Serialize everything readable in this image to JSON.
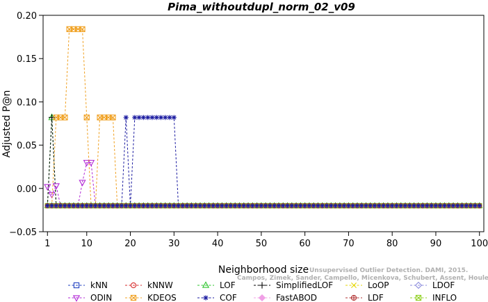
{
  "chart_data": {
    "type": "line",
    "title": "Pima_withoutdupl_norm_02_v09",
    "xlabel": "Neighborhood size",
    "ylabel": "Adjusted P@n",
    "xlim": [
      0,
      101
    ],
    "ylim": [
      -0.05,
      0.2
    ],
    "x_ticks": [
      1,
      10,
      20,
      30,
      40,
      50,
      60,
      70,
      80,
      90,
      100
    ],
    "y_ticks": [
      -0.05,
      0.0,
      0.05,
      0.1,
      0.15,
      0.2
    ],
    "y_tick_labels": [
      "−0.05",
      "0.00",
      "0.05",
      "0.10",
      "0.15",
      "0.20"
    ],
    "baseline": -0.02,
    "grid": false,
    "legend_position": "bottom",
    "series": [
      {
        "name": "kNN",
        "color": "#1f3fbf",
        "marker": "square",
        "points": []
      },
      {
        "name": "kNNW",
        "color": "#d62828",
        "marker": "circle",
        "points": []
      },
      {
        "name": "LOF",
        "color": "#2ec42e",
        "marker": "triangle-up",
        "points": [
          [
            1,
            -0.02
          ],
          [
            2,
            0.082
          ],
          [
            3,
            -0.02
          ]
        ]
      },
      {
        "name": "SimplifiedLOF",
        "color": "#000000",
        "marker": "plus",
        "points": [
          [
            1,
            -0.02
          ],
          [
            2,
            0.082
          ],
          [
            3,
            -0.02
          ]
        ]
      },
      {
        "name": "LoOP",
        "color": "#e6d600",
        "marker": "x",
        "points": []
      },
      {
        "name": "LDOF",
        "color": "#8a8adc",
        "marker": "diamond",
        "points": []
      },
      {
        "name": "ODIN",
        "color": "#b228d6",
        "marker": "triangle-down",
        "points": [
          [
            1,
            0.002
          ],
          [
            2,
            -0.007
          ],
          [
            3,
            0.003
          ],
          [
            4,
            -0.02
          ],
          [
            8,
            -0.02
          ],
          [
            9,
            0.007
          ],
          [
            10,
            0.03
          ],
          [
            11,
            0.03
          ],
          [
            12,
            -0.02
          ]
        ]
      },
      {
        "name": "KDEOS",
        "color": "#f0a020",
        "marker": "boxed-x",
        "points": [
          [
            2,
            -0.02
          ],
          [
            3,
            0.082
          ],
          [
            4,
            0.082
          ],
          [
            5,
            0.082
          ],
          [
            6,
            0.184
          ],
          [
            7,
            0.184
          ],
          [
            8,
            0.184
          ],
          [
            9,
            0.184
          ],
          [
            10,
            0.082
          ],
          [
            11,
            -0.02
          ],
          [
            12,
            -0.02
          ],
          [
            13,
            0.082
          ],
          [
            14,
            0.082
          ],
          [
            15,
            0.082
          ],
          [
            16,
            0.082
          ],
          [
            17,
            -0.02
          ]
        ]
      },
      {
        "name": "COF",
        "color": "#1a1aa0",
        "marker": "asterisk",
        "points": [
          [
            18,
            -0.02
          ],
          [
            19,
            0.082
          ],
          [
            20,
            -0.02
          ],
          [
            21,
            0.082
          ],
          [
            22,
            0.082
          ],
          [
            23,
            0.082
          ],
          [
            24,
            0.082
          ],
          [
            25,
            0.082
          ],
          [
            26,
            0.082
          ],
          [
            27,
            0.082
          ],
          [
            28,
            0.082
          ],
          [
            29,
            0.082
          ],
          [
            30,
            0.082
          ],
          [
            31,
            -0.02
          ]
        ]
      },
      {
        "name": "FastABOD",
        "color": "#f0a0e6",
        "marker": "diamond-filled",
        "points": []
      },
      {
        "name": "LDF",
        "color": "#b03030",
        "marker": "circle-plus",
        "points": []
      },
      {
        "name": "INFLO",
        "color": "#8fd020",
        "marker": "boxed-x",
        "points": []
      }
    ]
  },
  "watermark": {
    "line1": "Unsupervised Outlier Detection. DAMI, 2015.",
    "line2": "Campos, Zimek, Sander, Campello, Micenkova, Schubert, Assent, Houle"
  }
}
